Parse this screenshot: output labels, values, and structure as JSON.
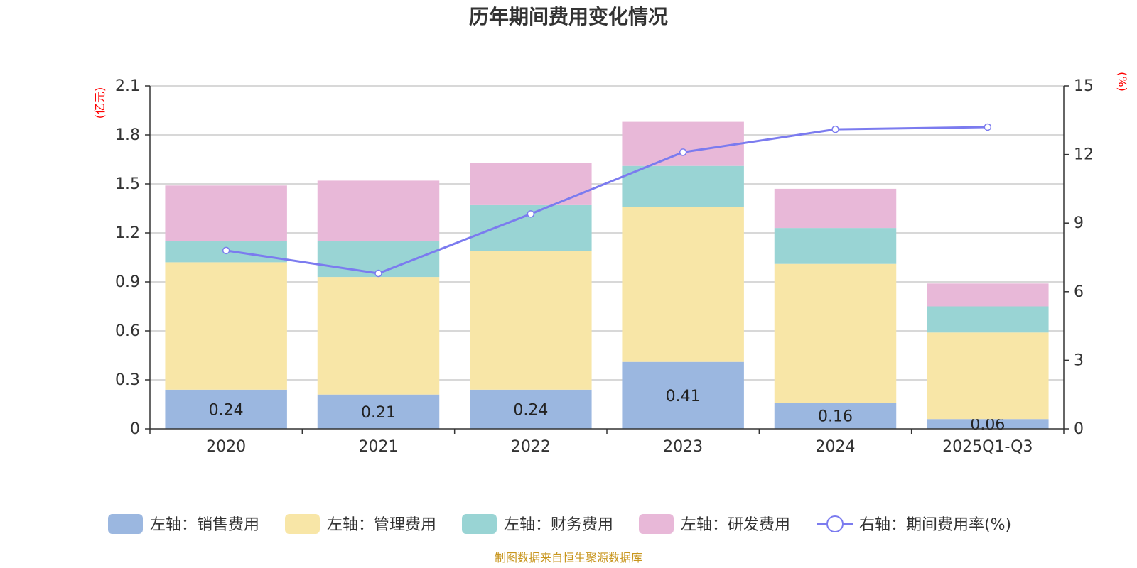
{
  "chart_data": {
    "type": "bar",
    "stacked": true,
    "title": "历年期间费用变化情况",
    "categories": [
      "2020",
      "2021",
      "2022",
      "2023",
      "2024",
      "2025Q1-Q3"
    ],
    "left_axis": {
      "unit": "(亿元)",
      "range": [
        0,
        2.1
      ],
      "ticks": [
        "0",
        "0.3",
        "0.6",
        "0.9",
        "1.2",
        "1.5",
        "1.8",
        "2.1"
      ]
    },
    "right_axis": {
      "unit": "(%)",
      "range": [
        0,
        15
      ],
      "ticks": [
        "0",
        "3",
        "6",
        "9",
        "12",
        "15"
      ]
    },
    "series": [
      {
        "name": "左轴：销售费用",
        "axis": "left",
        "color": "#9bb7e0",
        "values": [
          0.24,
          0.21,
          0.24,
          0.41,
          0.16,
          0.06
        ],
        "labels": [
          "0.24",
          "0.21",
          "0.24",
          "0.41",
          "0.16",
          "0.06"
        ]
      },
      {
        "name": "左轴：管理费用",
        "axis": "left",
        "color": "#f8e6a7",
        "values": [
          0.78,
          0.72,
          0.85,
          0.95,
          0.85,
          0.53
        ]
      },
      {
        "name": "左轴：财务费用",
        "axis": "left",
        "color": "#99d4d4",
        "values": [
          0.13,
          0.22,
          0.28,
          0.25,
          0.22,
          0.16
        ]
      },
      {
        "name": "左轴：研发费用",
        "axis": "left",
        "color": "#e8b8d8",
        "values": [
          0.34,
          0.37,
          0.26,
          0.27,
          0.24,
          0.14
        ]
      }
    ],
    "line": {
      "name": "右轴：期间费用率(%)",
      "axis": "right",
      "color": "#7b7bef",
      "values": [
        7.8,
        6.8,
        9.4,
        12.1,
        13.1,
        13.2
      ]
    },
    "grid": true,
    "legend": "bottom"
  },
  "footer": {
    "source": "制图数据来自恒生聚源数据库"
  }
}
